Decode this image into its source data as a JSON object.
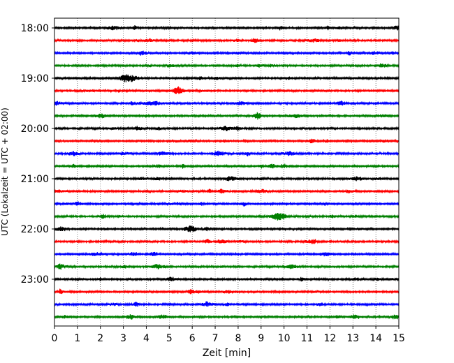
{
  "chart_data": {
    "type": "line",
    "title": "",
    "xlabel": "Zeit  [min]",
    "ylabel": "UTC (Lokalzeit = UTC + 02:00)",
    "xlim": [
      0,
      15
    ],
    "x_ticks": [
      "0",
      "1",
      "2",
      "3",
      "4",
      "5",
      "6",
      "7",
      "8",
      "9",
      "10",
      "11",
      "12",
      "13",
      "14",
      "15"
    ],
    "y_ticks": [
      "18:00",
      "19:00",
      "20:00",
      "21:00",
      "22:00",
      "23:00"
    ],
    "grid": "vertical dotted",
    "legend": "none",
    "trace_colors": [
      "#000000",
      "#ff0000",
      "#0000ff",
      "#008000"
    ],
    "series": [
      {
        "start": "18:00",
        "color": "#000000"
      },
      {
        "start": "18:15",
        "color": "#ff0000"
      },
      {
        "start": "18:30",
        "color": "#0000ff"
      },
      {
        "start": "18:45",
        "color": "#008000"
      },
      {
        "start": "19:00",
        "color": "#000000"
      },
      {
        "start": "19:15",
        "color": "#ff0000"
      },
      {
        "start": "19:30",
        "color": "#0000ff"
      },
      {
        "start": "19:45",
        "color": "#008000"
      },
      {
        "start": "20:00",
        "color": "#000000"
      },
      {
        "start": "20:15",
        "color": "#ff0000"
      },
      {
        "start": "20:30",
        "color": "#0000ff"
      },
      {
        "start": "20:45",
        "color": "#008000"
      },
      {
        "start": "21:00",
        "color": "#000000"
      },
      {
        "start": "21:15",
        "color": "#ff0000"
      },
      {
        "start": "21:30",
        "color": "#0000ff"
      },
      {
        "start": "21:45",
        "color": "#008000"
      },
      {
        "start": "22:00",
        "color": "#000000"
      },
      {
        "start": "22:15",
        "color": "#ff0000"
      },
      {
        "start": "22:30",
        "color": "#0000ff"
      },
      {
        "start": "22:45",
        "color": "#008000"
      },
      {
        "start": "23:00",
        "color": "#000000"
      },
      {
        "start": "23:15",
        "color": "#ff0000"
      },
      {
        "start": "23:30",
        "color": "#0000ff"
      },
      {
        "start": "23:45",
        "color": "#008000"
      }
    ]
  }
}
